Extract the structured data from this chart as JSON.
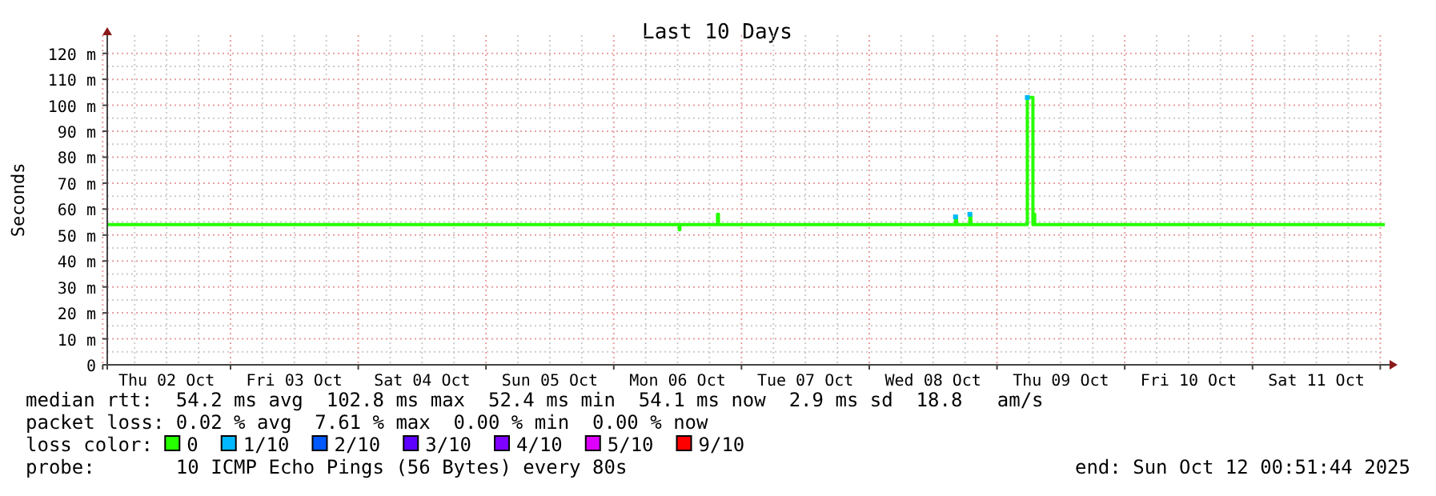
{
  "chart_data": {
    "type": "line",
    "title": "Last 10 Days",
    "ylabel": "Seconds",
    "xlim": [
      "2025-10-02T00:51",
      "2025-10-12T00:51"
    ],
    "xticks": [
      {
        "value": "2025-10-02T12:00",
        "label": "Thu 02 Oct"
      },
      {
        "value": "2025-10-03T12:00",
        "label": "Fri 03 Oct"
      },
      {
        "value": "2025-10-04T12:00",
        "label": "Sat 04 Oct"
      },
      {
        "value": "2025-10-05T12:00",
        "label": "Sun 05 Oct"
      },
      {
        "value": "2025-10-06T12:00",
        "label": "Mon 06 Oct"
      },
      {
        "value": "2025-10-07T12:00",
        "label": "Tue 07 Oct"
      },
      {
        "value": "2025-10-08T12:00",
        "label": "Wed 08 Oct"
      },
      {
        "value": "2025-10-09T12:00",
        "label": "Thu 09 Oct"
      },
      {
        "value": "2025-10-10T12:00",
        "label": "Fri 10 Oct"
      },
      {
        "value": "2025-10-11T12:00",
        "label": "Sat 11 Oct"
      }
    ],
    "ylim": [
      0,
      127
    ],
    "yticks": [
      {
        "value": 0,
        "label": "0"
      },
      {
        "value": 10,
        "label": "10 m"
      },
      {
        "value": 20,
        "label": "20 m"
      },
      {
        "value": 30,
        "label": "30 m"
      },
      {
        "value": 40,
        "label": "40 m"
      },
      {
        "value": 50,
        "label": "50 m"
      },
      {
        "value": 60,
        "label": "60 m"
      },
      {
        "value": 70,
        "label": "70 m"
      },
      {
        "value": 80,
        "label": "80 m"
      },
      {
        "value": 90,
        "label": "90 m"
      },
      {
        "value": 100,
        "label": "100 m"
      },
      {
        "value": 110,
        "label": "110 m"
      },
      {
        "value": 120,
        "label": "120 m"
      }
    ],
    "grid": true,
    "legend": "bottom",
    "legend_title": "loss color:",
    "series": [
      {
        "name": "0",
        "color": "#26ff00",
        "x": [
          "2025-10-02T00:51",
          "2025-10-06T12:10",
          "2025-10-06T12:18",
          "2025-10-06T12:26",
          "2025-10-06T19:20",
          "2025-10-06T19:30",
          "2025-10-06T19:40",
          "2025-10-08T16:00",
          "2025-10-08T16:12",
          "2025-10-08T16:24",
          "2025-10-08T18:45",
          "2025-10-08T18:54",
          "2025-10-08T19:05",
          "2025-10-09T05:30",
          "2025-10-09T05:42",
          "2025-10-09T06:00",
          "2025-10-09T06:45",
          "2025-10-09T06:54",
          "2025-10-09T07:05",
          "2025-10-12T00:51"
        ],
        "values": [
          54,
          54,
          52,
          54,
          54,
          58,
          54,
          54,
          57,
          54,
          54,
          58,
          54,
          54,
          103,
          103,
          54,
          58,
          54,
          54
        ]
      },
      {
        "name": "1/10",
        "color": "#00b8ff",
        "type": "scatter",
        "marker": "square",
        "x": [
          "2025-10-08T16:12",
          "2025-10-08T18:54",
          "2025-10-09T05:42"
        ],
        "values": [
          57,
          58,
          103
        ]
      },
      {
        "name": "2/10",
        "color": "#0059ff",
        "type": "scatter",
        "marker": "square"
      },
      {
        "name": "3/10",
        "color": "#5e00ff",
        "type": "scatter",
        "marker": "square"
      },
      {
        "name": "4/10",
        "color": "#7e00ff",
        "type": "scatter",
        "marker": "square"
      },
      {
        "name": "5/10",
        "color": "#dd00ff",
        "type": "scatter",
        "marker": "square"
      },
      {
        "name": "9/10",
        "color": "#ff0000",
        "type": "scatter",
        "marker": "square"
      }
    ],
    "annotations": [
      "median rtt:  54.2 ms avg  102.8 ms max  52.4 ms min  54.1 ms now  2.9 ms sd  18.8   am/s",
      "packet loss: 0.02 % avg  7.61 % max  0.00 % min  0.00 % now",
      "probe:       10 ICMP Echo Pings (56 Bytes) every 80s",
      "end: Sun Oct 12 00:51:44 2025"
    ]
  }
}
